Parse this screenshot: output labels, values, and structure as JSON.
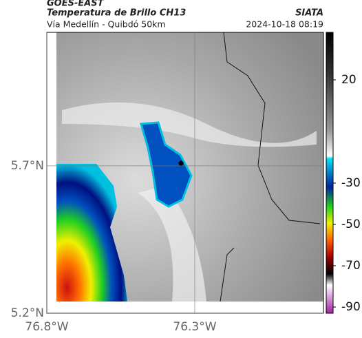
{
  "header": {
    "source": "GOES-EAST",
    "title": "Temperatura de Brillo CH13",
    "credit": "SIATA",
    "route": "Vía Medellín - Quibdó 50km",
    "timestamp": "2024-10-18 08:19"
  },
  "map": {
    "xlim": [
      -76.8,
      -75.865
    ],
    "ylim": [
      5.2,
      6.153
    ],
    "xticks": [
      {
        "value": -76.8,
        "label": "76.8°W"
      },
      {
        "value": -76.3,
        "label": "76.3°W"
      }
    ],
    "yticks": [
      {
        "value": 5.2,
        "label": "5.2°N"
      },
      {
        "value": 5.7,
        "label": "5.7°N"
      }
    ],
    "grid": true
  },
  "colorbar": {
    "clim": [
      -93,
      43
    ],
    "ticks": [
      20,
      -30,
      -50,
      -70,
      -90
    ]
  }
}
